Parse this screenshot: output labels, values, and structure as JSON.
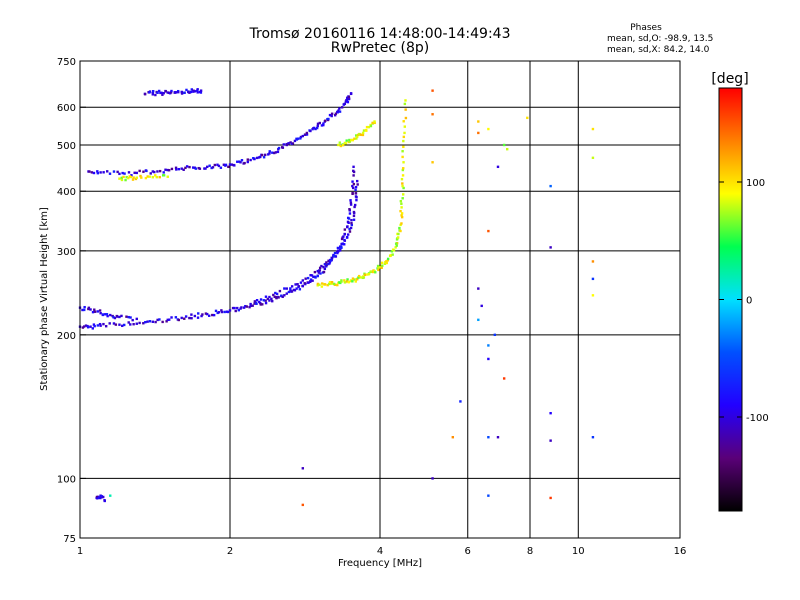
{
  "chart_data": {
    "type": "scatter",
    "title": "Tromsø 20160116 14:48:00-14:49:43",
    "subtitle": "RwPretec (8p)",
    "xlabel": "Frequency [MHz]",
    "ylabel": "Stationary phase Virtual Height [km]",
    "x_scale": "log",
    "y_scale": "log",
    "xlim": [
      1,
      16
    ],
    "ylim": [
      75,
      750
    ],
    "x_ticks": [
      1,
      2,
      4,
      6,
      8,
      10,
      16
    ],
    "x_tick_labels": [
      "1",
      "2",
      "4",
      "6",
      "8",
      "10",
      "16"
    ],
    "y_ticks": [
      75,
      100,
      200,
      300,
      400,
      500,
      600,
      750
    ],
    "y_tick_labels": [
      "75",
      "100",
      "200",
      "300",
      "400",
      "500",
      "600",
      "750"
    ],
    "grid": true,
    "grid_x": [
      2,
      4,
      6,
      8,
      10
    ],
    "grid_y": [
      100,
      200,
      300,
      400,
      500,
      600
    ],
    "colorbar": {
      "label": "[deg]",
      "min": -180,
      "max": 180,
      "ticks": [
        100,
        0,
        -100
      ],
      "tick_labels": [
        "100",
        "0",
        "-100"
      ],
      "colors": [
        "#000000",
        "#5a0078",
        "#2200ff",
        "#0050ff",
        "#00e0ff",
        "#00ff50",
        "#ffff00",
        "#ff8000",
        "#ff0000"
      ]
    },
    "stats": {
      "header": "Phases",
      "line1": "mean, sd,O: -98.9, 13.5",
      "line2": "mean, sd,X:  84.2, 14.0"
    },
    "series": [
      {
        "mode": "O",
        "phase": -100,
        "traces": [
          {
            "x": [
              1.0,
              1.05,
              1.1,
              1.2,
              1.3,
              1.4,
              1.5,
              1.6,
              1.7,
              1.8,
              1.9,
              2.0,
              2.1,
              2.2,
              2.3,
              2.4,
              2.5,
              2.6,
              2.7,
              2.8,
              2.9,
              3.0,
              3.1,
              3.2,
              3.3,
              3.35,
              3.4,
              3.45,
              3.5,
              3.52,
              3.54
            ],
            "y": [
              208,
              208,
              209,
              210,
              211,
              213,
              215,
              217,
              219,
              221,
              223,
              225,
              227,
              230,
              233,
              236,
              240,
              244,
              248,
              253,
              259,
              266,
              275,
              287,
              300,
              310,
              325,
              345,
              375,
              410,
              450
            ]
          },
          {
            "x": [
              2.2,
              2.4,
              2.6,
              2.8,
              3.0,
              3.1,
              3.2,
              3.3,
              3.4,
              3.5,
              3.55,
              3.58,
              3.6
            ],
            "y": [
              232,
              240,
              250,
              260,
              272,
              281,
              290,
              300,
              315,
              335,
              360,
              390,
              420
            ]
          },
          {
            "x": [
              1.0,
              1.05,
              1.1,
              1.15,
              1.2,
              1.3
            ],
            "y": [
              228,
              226,
              222,
              220,
              218,
              216
            ]
          },
          {
            "x": [
              1.04,
              1.1,
              1.2,
              1.3,
              1.4,
              1.5,
              1.6,
              1.7,
              1.8,
              1.9,
              2.0,
              2.1,
              2.2,
              2.3,
              2.4,
              2.5,
              2.6,
              2.7,
              2.8,
              2.9,
              3.0,
              3.1,
              3.2,
              3.3,
              3.4,
              3.45,
              3.5
            ],
            "y": [
              440,
              438,
              435,
              437,
              440,
              443,
              446,
              448,
              450,
              452,
              455,
              460,
              465,
              472,
              480,
              490,
              500,
              510,
              522,
              535,
              548,
              560,
              575,
              590,
              610,
              625,
              640
            ]
          },
          {
            "x": [
              1.35,
              1.4,
              1.45,
              1.5,
              1.55,
              1.6,
              1.65,
              1.7,
              1.75
            ],
            "y": [
              640,
              642,
              643,
              644,
              645,
              646,
              647,
              648,
              650
            ]
          },
          {
            "x": [
              1.08,
              1.1,
              1.12
            ],
            "y": [
              91,
              92,
              90
            ]
          }
        ]
      },
      {
        "mode": "X",
        "phase": 85,
        "traces": [
          {
            "x": [
              3.0,
              3.1,
              3.2,
              3.3,
              3.4,
              3.5,
              3.6,
              3.7,
              3.8,
              3.9,
              4.0,
              4.1,
              4.2,
              4.3,
              4.35,
              4.4,
              4.42,
              4.44,
              4.46,
              4.48,
              4.5
            ],
            "y": [
              254,
              255,
              256,
              257,
              258,
              260,
              262,
              265,
              268,
              272,
              277,
              284,
              293,
              305,
              320,
              340,
              370,
              410,
              460,
              530,
              620
            ]
          },
          {
            "x": [
              3.3,
              3.4,
              3.5,
              3.6,
              3.7,
              3.8,
              3.9
            ],
            "y": [
              500,
              505,
              512,
              520,
              530,
              545,
              560
            ]
          },
          {
            "x": [
              1.2,
              1.25,
              1.3,
              1.4,
              1.5
            ],
            "y": [
              425,
              426,
              427,
              428,
              429
            ]
          }
        ]
      }
    ],
    "scattered_points": [
      {
        "x": 5.1,
        "y": 650,
        "phase": 150
      },
      {
        "x": 5.1,
        "y": 580,
        "phase": 140
      },
      {
        "x": 5.1,
        "y": 460,
        "phase": 110
      },
      {
        "x": 6.3,
        "y": 560,
        "phase": 110
      },
      {
        "x": 6.3,
        "y": 530,
        "phase": 140
      },
      {
        "x": 6.6,
        "y": 540,
        "phase": 90
      },
      {
        "x": 7.1,
        "y": 500,
        "phase": 60
      },
      {
        "x": 7.2,
        "y": 490,
        "phase": 80
      },
      {
        "x": 7.9,
        "y": 570,
        "phase": 100
      },
      {
        "x": 6.9,
        "y": 450,
        "phase": -100
      },
      {
        "x": 8.8,
        "y": 410,
        "phase": -40
      },
      {
        "x": 8.8,
        "y": 305,
        "phase": -110
      },
      {
        "x": 6.6,
        "y": 330,
        "phase": 150
      },
      {
        "x": 6.3,
        "y": 250,
        "phase": -110
      },
      {
        "x": 6.4,
        "y": 230,
        "phase": -100
      },
      {
        "x": 6.3,
        "y": 215,
        "phase": -20
      },
      {
        "x": 6.8,
        "y": 200,
        "phase": -60
      },
      {
        "x": 6.6,
        "y": 190,
        "phase": -30
      },
      {
        "x": 6.6,
        "y": 178,
        "phase": -90
      },
      {
        "x": 7.1,
        "y": 162,
        "phase": 160
      },
      {
        "x": 5.8,
        "y": 145,
        "phase": -70
      },
      {
        "x": 5.6,
        "y": 122,
        "phase": 130
      },
      {
        "x": 6.6,
        "y": 122,
        "phase": -50
      },
      {
        "x": 6.9,
        "y": 122,
        "phase": -110
      },
      {
        "x": 8.8,
        "y": 137,
        "phase": -90
      },
      {
        "x": 8.8,
        "y": 120,
        "phase": -110
      },
      {
        "x": 10.7,
        "y": 122,
        "phase": -60
      },
      {
        "x": 10.7,
        "y": 540,
        "phase": 100
      },
      {
        "x": 10.7,
        "y": 470,
        "phase": 80
      },
      {
        "x": 10.7,
        "y": 285,
        "phase": 130
      },
      {
        "x": 10.7,
        "y": 262,
        "phase": -60
      },
      {
        "x": 10.7,
        "y": 242,
        "phase": 90
      },
      {
        "x": 2.8,
        "y": 105,
        "phase": -110
      },
      {
        "x": 2.8,
        "y": 88,
        "phase": 150
      },
      {
        "x": 6.6,
        "y": 92,
        "phase": -50
      },
      {
        "x": 8.8,
        "y": 91,
        "phase": 160
      },
      {
        "x": 5.1,
        "y": 100,
        "phase": -110
      },
      {
        "x": 1.15,
        "y": 92,
        "phase": 20
      }
    ]
  }
}
